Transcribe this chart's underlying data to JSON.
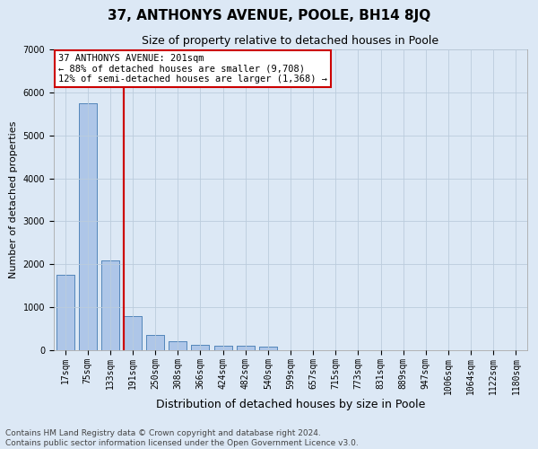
{
  "title": "37, ANTHONYS AVENUE, POOLE, BH14 8JQ",
  "subtitle": "Size of property relative to detached houses in Poole",
  "xlabel": "Distribution of detached houses by size in Poole",
  "ylabel": "Number of detached properties",
  "bar_labels": [
    "17sqm",
    "75sqm",
    "133sqm",
    "191sqm",
    "250sqm",
    "308sqm",
    "366sqm",
    "424sqm",
    "482sqm",
    "540sqm",
    "599sqm",
    "657sqm",
    "715sqm",
    "773sqm",
    "831sqm",
    "889sqm",
    "947sqm",
    "1006sqm",
    "1064sqm",
    "1122sqm",
    "1180sqm"
  ],
  "bar_values": [
    1750,
    5750,
    2100,
    800,
    350,
    200,
    120,
    100,
    100,
    80,
    0,
    0,
    0,
    0,
    0,
    0,
    0,
    0,
    0,
    0,
    0
  ],
  "bar_color": "#aec6e8",
  "bar_edgecolor": "#5588bb",
  "vline_color": "#cc0000",
  "vline_x_index": 3,
  "ylim": [
    0,
    7000
  ],
  "yticks": [
    0,
    1000,
    2000,
    3000,
    4000,
    5000,
    6000,
    7000
  ],
  "annotation_line1": "37 ANTHONYS AVENUE: 201sqm",
  "annotation_line2": "← 88% of detached houses are smaller (9,708)",
  "annotation_line3": "12% of semi-detached houses are larger (1,368) →",
  "annotation_box_color": "#ffffff",
  "annotation_box_edgecolor": "#cc0000",
  "grid_color": "#bbccdd",
  "background_color": "#dce8f5",
  "footer_line1": "Contains HM Land Registry data © Crown copyright and database right 2024.",
  "footer_line2": "Contains public sector information licensed under the Open Government Licence v3.0.",
  "title_fontsize": 11,
  "subtitle_fontsize": 9,
  "xlabel_fontsize": 9,
  "ylabel_fontsize": 8,
  "tick_fontsize": 7,
  "annotation_fontsize": 7.5,
  "footer_fontsize": 6.5
}
